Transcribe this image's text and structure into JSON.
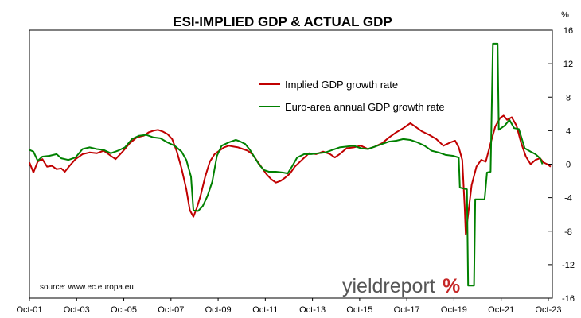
{
  "chart_data": {
    "type": "line",
    "title": "ESI-IMPLIED GDP & ACTUAL GDP",
    "y_unit": "%",
    "ylim": [
      -16,
      16
    ],
    "y_ticks": [
      "16",
      "12",
      "8",
      "4",
      "0",
      "-4",
      "-8",
      "-12",
      "-16"
    ],
    "y_tick_values": [
      16,
      12,
      8,
      4,
      0,
      -4,
      -8,
      -12,
      -16
    ],
    "x_range": [
      2001.75,
      2023.92
    ],
    "x_ticks": [
      "Oct-01",
      "Oct-03",
      "Oct-05",
      "Oct-07",
      "Oct-09",
      "Oct-11",
      "Oct-13",
      "Oct-15",
      "Oct-17",
      "Oct-19",
      "Oct-21",
      "Oct-23"
    ],
    "x_tick_values": [
      2001.75,
      2003.75,
      2005.75,
      2007.75,
      2009.75,
      2011.75,
      2013.75,
      2015.75,
      2017.75,
      2019.75,
      2021.75,
      2023.75
    ],
    "grid": false,
    "legend_position": "top-center",
    "series": [
      {
        "name": "Implied GDP growth rate",
        "color": "#c00000",
        "points": [
          [
            2001.75,
            0.2
          ],
          [
            2001.92,
            -1.0
          ],
          [
            2002.1,
            0.3
          ],
          [
            2002.3,
            0.6
          ],
          [
            2002.5,
            -0.3
          ],
          [
            2002.7,
            -0.2
          ],
          [
            2002.9,
            -0.6
          ],
          [
            2003.1,
            -0.5
          ],
          [
            2003.25,
            -0.9
          ],
          [
            2003.45,
            -0.2
          ],
          [
            2003.7,
            0.6
          ],
          [
            2004.0,
            1.2
          ],
          [
            2004.3,
            1.4
          ],
          [
            2004.6,
            1.3
          ],
          [
            2004.9,
            1.6
          ],
          [
            2005.2,
            1.0
          ],
          [
            2005.4,
            0.6
          ],
          [
            2005.7,
            1.5
          ],
          [
            2006.0,
            2.5
          ],
          [
            2006.3,
            3.2
          ],
          [
            2006.6,
            3.4
          ],
          [
            2006.8,
            3.8
          ],
          [
            2007.0,
            4.0
          ],
          [
            2007.2,
            4.1
          ],
          [
            2007.4,
            3.9
          ],
          [
            2007.6,
            3.6
          ],
          [
            2007.8,
            3.0
          ],
          [
            2008.0,
            1.5
          ],
          [
            2008.2,
            -0.5
          ],
          [
            2008.4,
            -3.0
          ],
          [
            2008.55,
            -5.5
          ],
          [
            2008.7,
            -6.3
          ],
          [
            2008.85,
            -5.2
          ],
          [
            2009.0,
            -3.8
          ],
          [
            2009.2,
            -1.5
          ],
          [
            2009.4,
            0.3
          ],
          [
            2009.6,
            1.2
          ],
          [
            2009.8,
            1.6
          ],
          [
            2010.0,
            2.0
          ],
          [
            2010.2,
            2.2
          ],
          [
            2010.4,
            2.1
          ],
          [
            2010.6,
            2.0
          ],
          [
            2010.8,
            1.8
          ],
          [
            2011.0,
            1.6
          ],
          [
            2011.2,
            1.2
          ],
          [
            2011.4,
            0.4
          ],
          [
            2011.6,
            -0.4
          ],
          [
            2011.8,
            -1.2
          ],
          [
            2012.0,
            -1.8
          ],
          [
            2012.2,
            -2.2
          ],
          [
            2012.4,
            -2.0
          ],
          [
            2012.6,
            -1.6
          ],
          [
            2012.8,
            -1.1
          ],
          [
            2013.0,
            -0.3
          ],
          [
            2013.3,
            0.5
          ],
          [
            2013.6,
            1.3
          ],
          [
            2013.9,
            1.2
          ],
          [
            2014.2,
            1.5
          ],
          [
            2014.5,
            1.2
          ],
          [
            2014.7,
            0.8
          ],
          [
            2014.9,
            1.2
          ],
          [
            2015.2,
            1.9
          ],
          [
            2015.5,
            2.0
          ],
          [
            2015.8,
            2.2
          ],
          [
            2016.1,
            1.8
          ],
          [
            2016.4,
            2.1
          ],
          [
            2016.7,
            2.5
          ],
          [
            2017.0,
            3.2
          ],
          [
            2017.3,
            3.8
          ],
          [
            2017.6,
            4.3
          ],
          [
            2017.9,
            4.9
          ],
          [
            2018.1,
            4.5
          ],
          [
            2018.4,
            3.9
          ],
          [
            2018.7,
            3.5
          ],
          [
            2019.0,
            3.0
          ],
          [
            2019.3,
            2.2
          ],
          [
            2019.6,
            2.6
          ],
          [
            2019.8,
            2.8
          ],
          [
            2019.95,
            2.0
          ],
          [
            2020.1,
            0.5
          ],
          [
            2020.2,
            -5.0
          ],
          [
            2020.25,
            -8.4
          ],
          [
            2020.35,
            -6.0
          ],
          [
            2020.5,
            -2.5
          ],
          [
            2020.7,
            -0.3
          ],
          [
            2020.9,
            0.5
          ],
          [
            2021.1,
            0.3
          ],
          [
            2021.3,
            2.5
          ],
          [
            2021.5,
            4.5
          ],
          [
            2021.7,
            5.5
          ],
          [
            2021.85,
            5.8
          ],
          [
            2022.0,
            5.3
          ],
          [
            2022.2,
            5.6
          ],
          [
            2022.4,
            4.6
          ],
          [
            2022.6,
            2.5
          ],
          [
            2022.8,
            0.9
          ],
          [
            2023.0,
            0.0
          ],
          [
            2023.2,
            0.5
          ],
          [
            2023.4,
            0.7
          ],
          [
            2023.55,
            0.2
          ],
          [
            2023.7,
            0.0
          ],
          [
            2023.85,
            -0.3
          ]
        ]
      },
      {
        "name": "Euro-area annual GDP growth rate",
        "color": "#008000",
        "points": [
          [
            2001.75,
            1.7
          ],
          [
            2001.92,
            1.5
          ],
          [
            2002.1,
            0.4
          ],
          [
            2002.3,
            0.9
          ],
          [
            2002.6,
            1.0
          ],
          [
            2002.9,
            1.2
          ],
          [
            2003.1,
            0.7
          ],
          [
            2003.4,
            0.5
          ],
          [
            2003.7,
            0.8
          ],
          [
            2004.0,
            1.8
          ],
          [
            2004.3,
            2.0
          ],
          [
            2004.6,
            1.8
          ],
          [
            2004.9,
            1.7
          ],
          [
            2005.2,
            1.3
          ],
          [
            2005.5,
            1.6
          ],
          [
            2005.8,
            2.0
          ],
          [
            2006.1,
            3.0
          ],
          [
            2006.4,
            3.4
          ],
          [
            2006.7,
            3.5
          ],
          [
            2007.0,
            3.2
          ],
          [
            2007.3,
            3.1
          ],
          [
            2007.6,
            2.6
          ],
          [
            2007.9,
            2.2
          ],
          [
            2008.2,
            1.5
          ],
          [
            2008.4,
            0.5
          ],
          [
            2008.6,
            -1.5
          ],
          [
            2008.7,
            -5.5
          ],
          [
            2008.9,
            -5.6
          ],
          [
            2009.1,
            -5.0
          ],
          [
            2009.3,
            -3.8
          ],
          [
            2009.5,
            -2.1
          ],
          [
            2009.7,
            1.0
          ],
          [
            2009.9,
            2.2
          ],
          [
            2010.2,
            2.6
          ],
          [
            2010.5,
            2.9
          ],
          [
            2010.7,
            2.7
          ],
          [
            2010.9,
            2.4
          ],
          [
            2011.1,
            1.7
          ],
          [
            2011.3,
            0.8
          ],
          [
            2011.5,
            -0.1
          ],
          [
            2011.7,
            -0.7
          ],
          [
            2011.9,
            -0.9
          ],
          [
            2012.2,
            -0.9
          ],
          [
            2012.5,
            -1.0
          ],
          [
            2012.7,
            -1.1
          ],
          [
            2012.9,
            -0.2
          ],
          [
            2013.1,
            0.8
          ],
          [
            2013.4,
            1.2
          ],
          [
            2013.7,
            1.2
          ],
          [
            2014.0,
            1.3
          ],
          [
            2014.3,
            1.4
          ],
          [
            2014.6,
            1.7
          ],
          [
            2014.9,
            2.0
          ],
          [
            2015.2,
            2.1
          ],
          [
            2015.5,
            2.2
          ],
          [
            2015.8,
            1.9
          ],
          [
            2016.1,
            1.8
          ],
          [
            2016.4,
            2.1
          ],
          [
            2016.7,
            2.4
          ],
          [
            2017.0,
            2.7
          ],
          [
            2017.3,
            2.8
          ],
          [
            2017.6,
            3.0
          ],
          [
            2017.9,
            2.9
          ],
          [
            2018.2,
            2.6
          ],
          [
            2018.5,
            2.2
          ],
          [
            2018.8,
            1.6
          ],
          [
            2019.1,
            1.4
          ],
          [
            2019.4,
            1.1
          ],
          [
            2019.7,
            1.0
          ],
          [
            2019.95,
            0.8
          ],
          [
            2020.0,
            -2.8
          ],
          [
            2020.3,
            -3.0
          ],
          [
            2020.35,
            -14.5
          ],
          [
            2020.6,
            -14.5
          ],
          [
            2020.65,
            -4.2
          ],
          [
            2020.9,
            -4.2
          ],
          [
            2021.05,
            -4.2
          ],
          [
            2021.15,
            -1.0
          ],
          [
            2021.3,
            -0.9
          ],
          [
            2021.4,
            14.4
          ],
          [
            2021.6,
            14.4
          ],
          [
            2021.65,
            4.1
          ],
          [
            2021.9,
            4.6
          ],
          [
            2022.1,
            5.3
          ],
          [
            2022.3,
            4.3
          ],
          [
            2022.5,
            4.2
          ],
          [
            2022.75,
            1.9
          ],
          [
            2023.0,
            1.5
          ],
          [
            2023.2,
            1.2
          ],
          [
            2023.4,
            0.7
          ],
          [
            2023.5,
            0.0
          ]
        ]
      }
    ]
  },
  "legend": {
    "items": [
      {
        "label": "Implied GDP growth rate",
        "color": "#c00000"
      },
      {
        "label": "Euro-area annual GDP growth rate",
        "color": "#008000"
      }
    ]
  },
  "source_text": "source: www.ec.europa.eu",
  "brand": {
    "text": "yieldreport",
    "symbol": "%",
    "color_text": "#555555",
    "color_symbol_left": "#2e7d32",
    "color_symbol_right": "#c62828"
  }
}
